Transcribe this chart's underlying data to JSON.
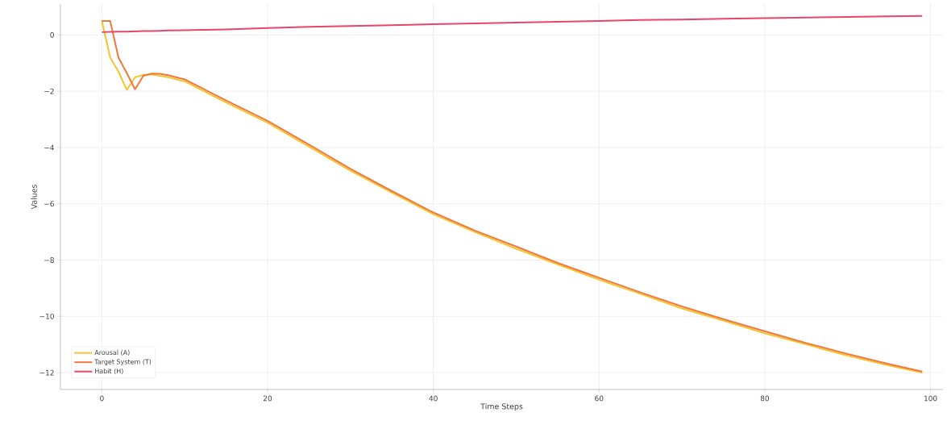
{
  "chart_data": {
    "type": "line",
    "xlabel": "Time Steps",
    "ylabel": "Values",
    "x": [
      0,
      1,
      2,
      3,
      4,
      5,
      6,
      7,
      8,
      10,
      12,
      15,
      20,
      25,
      30,
      35,
      40,
      45,
      50,
      55,
      60,
      65,
      70,
      75,
      80,
      85,
      90,
      95,
      99
    ],
    "series": [
      {
        "name": "Arousal (A)",
        "color": "#f4c430",
        "values": [
          0.5,
          -0.8,
          -1.3,
          -1.95,
          -1.5,
          -1.42,
          -1.4,
          -1.45,
          -1.5,
          -1.65,
          -1.95,
          -2.4,
          -3.12,
          -3.97,
          -4.82,
          -5.6,
          -6.37,
          -7.0,
          -7.6,
          -8.15,
          -8.7,
          -9.2,
          -9.72,
          -10.15,
          -10.6,
          -11.0,
          -11.4,
          -11.75,
          -12.0
        ]
      },
      {
        "name": "Target System (T)",
        "color": "#f07a3c",
        "values": [
          0.5,
          0.5,
          -0.8,
          -1.35,
          -1.93,
          -1.45,
          -1.37,
          -1.38,
          -1.43,
          -1.58,
          -1.88,
          -2.33,
          -3.05,
          -3.9,
          -4.76,
          -5.55,
          -6.31,
          -6.95,
          -7.52,
          -8.1,
          -8.63,
          -9.15,
          -9.65,
          -10.1,
          -10.53,
          -10.95,
          -11.34,
          -11.7,
          -11.96
        ]
      },
      {
        "name": "Habit (H)",
        "color": "#e8456b",
        "values": [
          0.1,
          0.11,
          0.12,
          0.12,
          0.13,
          0.14,
          0.14,
          0.15,
          0.16,
          0.17,
          0.18,
          0.2,
          0.25,
          0.29,
          0.32,
          0.35,
          0.38,
          0.41,
          0.44,
          0.47,
          0.5,
          0.53,
          0.55,
          0.58,
          0.6,
          0.62,
          0.64,
          0.66,
          0.68
        ]
      }
    ],
    "xlim": [
      -5,
      101.5
    ],
    "ylim": [
      -12.6,
      1.1
    ],
    "xticks": [
      0,
      20,
      40,
      60,
      80,
      100
    ],
    "yticks": [
      {
        "value": -12,
        "label": "−12"
      },
      {
        "value": -10,
        "label": "−10"
      },
      {
        "value": -8,
        "label": "−8"
      },
      {
        "value": -6,
        "label": "−6"
      },
      {
        "value": -4,
        "label": "−4"
      },
      {
        "value": -2,
        "label": "−2"
      },
      0
    ],
    "grid": true,
    "legend": "bottom left",
    "line_style": "solid",
    "marker": "none"
  }
}
